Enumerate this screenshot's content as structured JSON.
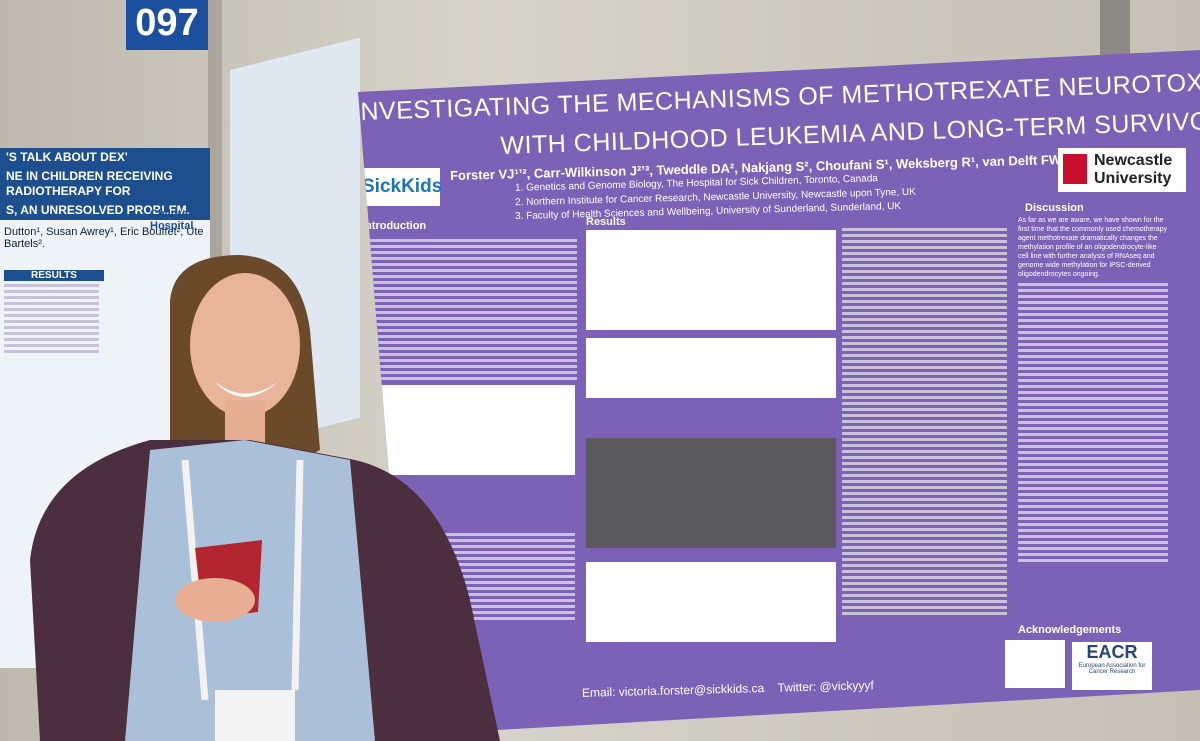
{
  "booth_number": "097",
  "left_poster": {
    "title_lines": [
      "'S TALK ABOUT DEX'",
      "NE IN CHILDREN RECEIVING RADIOTHERAPY FOR",
      "S, AN UNRESOLVED PROBLEM."
    ],
    "authors": "Dutton¹, Susan Awrey¹, Eric Bouffet², Ute Bartels².",
    "hospital_logo": "Children's Hospital",
    "results_heading": "RESULTS"
  },
  "poster": {
    "title_lines": [
      "NVESTIGATING THE MECHANISMS OF METHOTREXATE NEUROTOXICITY IN PATIENTS",
      "WITH CHILDHOOD LEUKEMIA AND LONG-TERM SURVIVORS"
    ],
    "authors": "Forster VJ¹ʼ², Carr-Wilkinson J²ʼ³, Tweddle DA², Nakjang S², Choufani S¹, Weksberg R¹, van Delft FW²",
    "affiliations": [
      "1. Genetics and Genome Biology, The Hospital for Sick Children, Toronto, Canada",
      "2. Northern Institute for Cancer Research, Newcastle University, Newcastle upon Tyne, UK",
      "3. Faculty of Health Sciences and Wellbeing, University of Sunderland, Sunderland, UK"
    ],
    "logos": {
      "left": "SickKids",
      "right_line1": "Newcastle",
      "right_line2": "University"
    },
    "sections": {
      "introduction": "Introduction",
      "results": "Results",
      "discussion": "Discussion",
      "acknowledgements": "Acknowledgements"
    },
    "discussion_text": "As far as we are aware, we have shown for the first time that the commonly used chemotherapy agent methotrexate dramatically changes the methylation profile of an oligodendrocyte-like cell line with further analysis of RNAseq and genome wide methylation for iPSC-derived oligodendrocytes ongoing.",
    "footer": {
      "email": "Email: victoria.forster@sickkids.ca",
      "twitter": "Twitter: @vickyyyf"
    },
    "sponsor": {
      "name": "EACR",
      "subtitle": "European Association for Cancer Research"
    }
  }
}
